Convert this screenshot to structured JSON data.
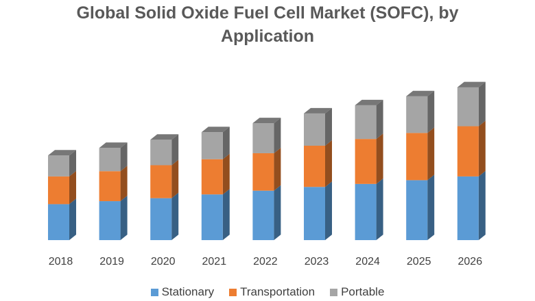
{
  "chart_data": {
    "type": "bar",
    "stacked": true,
    "style": "3d-column",
    "title_lines": [
      "Global Solid Oxide Fuel Cell Market (SOFC), by",
      "Application"
    ],
    "categories": [
      "2018",
      "2019",
      "2020",
      "2021",
      "2022",
      "2023",
      "2024",
      "2025",
      "2026"
    ],
    "series": [
      {
        "name": "Stationary",
        "color": "#5b9bd5",
        "values": [
          48,
          52,
          56,
          61,
          66,
          71,
          75,
          80,
          85
        ]
      },
      {
        "name": "Transportation",
        "color": "#ed7d31",
        "values": [
          37,
          40,
          44,
          47,
          50,
          55,
          60,
          63,
          67
        ]
      },
      {
        "name": "Portable",
        "color": "#a5a5a5",
        "values": [
          28,
          31,
          34,
          36,
          40,
          43,
          45,
          49,
          52
        ]
      }
    ],
    "ylim": [
      0,
      210
    ],
    "xlabel": "",
    "ylabel": "",
    "grid": false,
    "legend_position": "bottom"
  }
}
